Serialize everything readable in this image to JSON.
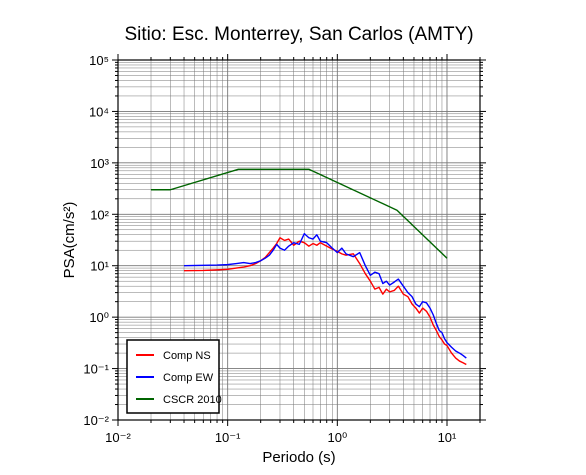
{
  "chart_data": {
    "type": "line",
    "title": "Sitio: Esc. Monterrey, San Carlos (AMTY)",
    "xlabel": "Periodo (s)",
    "ylabel": "PSA(cm/s²)",
    "xscale": "log",
    "yscale": "log",
    "xlim": [
      0.01,
      20
    ],
    "ylim": [
      0.01,
      100000
    ],
    "grid": true,
    "legend_position": "bottom-left",
    "x_ticks": [
      "10⁻²",
      "10⁻¹",
      "10⁰",
      "10¹"
    ],
    "y_ticks": [
      "10⁻²",
      "10⁻¹",
      "10⁰",
      "10¹",
      "10²",
      "10³",
      "10⁴",
      "10⁵"
    ],
    "series": [
      {
        "name": "Comp NS",
        "color": "#ff0000",
        "x": [
          0.04,
          0.06,
          0.08,
          0.1,
          0.12,
          0.14,
          0.16,
          0.18,
          0.2,
          0.22,
          0.24,
          0.26,
          0.28,
          0.3,
          0.33,
          0.36,
          0.4,
          0.45,
          0.5,
          0.55,
          0.6,
          0.65,
          0.7,
          0.8,
          0.9,
          1.0,
          1.1,
          1.2,
          1.4,
          1.6,
          1.8,
          2.0,
          2.2,
          2.4,
          2.6,
          2.8,
          3.0,
          3.3,
          3.6,
          4.0,
          4.4,
          4.8,
          5.2,
          5.6,
          6.0,
          6.5,
          7.0,
          7.5,
          8.0,
          8.5,
          9.0,
          9.5,
          10.0,
          11.0,
          12.0,
          13.0,
          14.0,
          15.0
        ],
        "y": [
          8,
          8.1,
          8.3,
          8.5,
          9,
          9.4,
          10,
          11,
          12.5,
          14.5,
          18,
          22,
          27,
          35,
          31,
          33,
          25,
          30,
          28,
          24,
          27,
          25,
          28,
          24,
          21,
          19,
          17,
          16,
          17,
          11,
          7,
          5,
          3.5,
          3.8,
          2.8,
          3.5,
          3.1,
          3.3,
          4,
          2.8,
          2.5,
          1.8,
          1.5,
          1.2,
          1.5,
          1.3,
          1,
          0.7,
          0.55,
          0.42,
          0.36,
          0.3,
          0.28,
          0.2,
          0.16,
          0.14,
          0.13,
          0.12
        ]
      },
      {
        "name": "Comp EW",
        "color": "#0000ff",
        "x": [
          0.04,
          0.06,
          0.08,
          0.1,
          0.12,
          0.14,
          0.16,
          0.18,
          0.2,
          0.22,
          0.24,
          0.26,
          0.28,
          0.3,
          0.33,
          0.36,
          0.4,
          0.45,
          0.5,
          0.55,
          0.6,
          0.65,
          0.7,
          0.8,
          0.9,
          1.0,
          1.1,
          1.2,
          1.4,
          1.6,
          1.8,
          2.0,
          2.2,
          2.4,
          2.6,
          2.8,
          3.0,
          3.3,
          3.6,
          4.0,
          4.4,
          4.8,
          5.2,
          5.6,
          6.0,
          6.5,
          7.0,
          7.5,
          8.0,
          8.5,
          9.0,
          9.5,
          10.0,
          11.0,
          12.0,
          13.0,
          14.0,
          15.0
        ],
        "y": [
          10,
          10.2,
          10.3,
          10.5,
          11,
          11.5,
          11,
          11.5,
          12.5,
          14,
          16,
          20,
          26,
          22,
          20,
          24,
          28,
          26,
          42,
          35,
          33,
          40,
          30,
          28,
          22,
          18,
          22,
          17,
          15,
          18,
          10,
          6.5,
          7.5,
          7,
          4.5,
          5,
          4.2,
          4.8,
          5.5,
          4,
          3,
          2.5,
          1.8,
          1.6,
          2,
          1.9,
          1.5,
          1.1,
          0.75,
          0.55,
          0.5,
          0.38,
          0.32,
          0.26,
          0.22,
          0.2,
          0.18,
          0.16
        ]
      },
      {
        "name": "CSCR 2010",
        "color": "#006400",
        "x": [
          0.02,
          0.03,
          0.125,
          0.55,
          3.5,
          10.0
        ],
        "y": [
          300,
          300,
          750,
          750,
          120,
          14
        ]
      }
    ]
  }
}
